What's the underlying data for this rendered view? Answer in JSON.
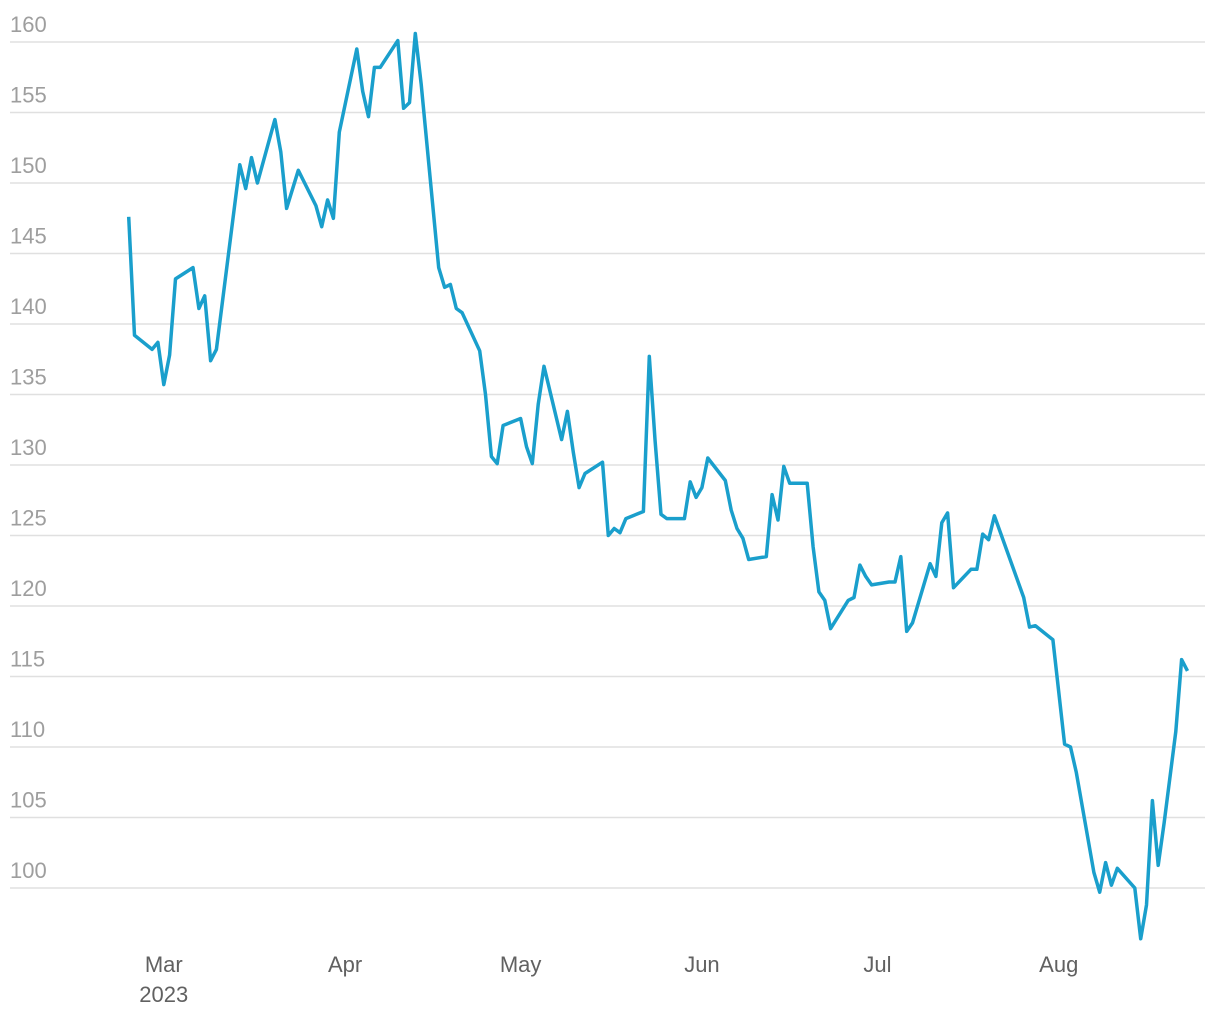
{
  "chart_data": {
    "type": "line",
    "color": "#1a9fcc",
    "grid": true,
    "x": [
      "2023-02-23",
      "2023-02-24",
      "2023-02-27",
      "2023-02-28",
      "2023-03-01",
      "2023-03-02",
      "2023-03-03",
      "2023-03-06",
      "2023-03-07",
      "2023-03-08",
      "2023-03-09",
      "2023-03-10",
      "2023-03-14",
      "2023-03-15",
      "2023-03-16",
      "2023-03-17",
      "2023-03-20",
      "2023-03-21",
      "2023-03-22",
      "2023-03-24",
      "2023-03-27",
      "2023-03-28",
      "2023-03-29",
      "2023-03-30",
      "2023-03-31",
      "2023-04-03",
      "2023-04-04",
      "2023-04-05",
      "2023-04-06",
      "2023-04-07",
      "2023-04-10",
      "2023-04-11",
      "2023-04-12",
      "2023-04-13",
      "2023-04-14",
      "2023-04-17",
      "2023-04-18",
      "2023-04-19",
      "2023-04-20",
      "2023-04-21",
      "2023-04-24",
      "2023-04-25",
      "2023-04-26",
      "2023-04-27",
      "2023-04-28",
      "2023-05-01",
      "2023-05-02",
      "2023-05-03",
      "2023-05-04",
      "2023-05-05",
      "2023-05-08",
      "2023-05-09",
      "2023-05-10",
      "2023-05-11",
      "2023-05-12",
      "2023-05-15",
      "2023-05-16",
      "2023-05-17",
      "2023-05-18",
      "2023-05-19",
      "2023-05-22",
      "2023-05-23",
      "2023-05-24",
      "2023-05-25",
      "2023-05-26",
      "2023-05-29",
      "2023-05-30",
      "2023-05-31",
      "2023-06-01",
      "2023-06-02",
      "2023-06-05",
      "2023-06-06",
      "2023-06-07",
      "2023-06-08",
      "2023-06-09",
      "2023-06-12",
      "2023-06-13",
      "2023-06-14",
      "2023-06-15",
      "2023-06-16",
      "2023-06-19",
      "2023-06-20",
      "2023-06-21",
      "2023-06-22",
      "2023-06-23",
      "2023-06-26",
      "2023-06-27",
      "2023-06-28",
      "2023-06-29",
      "2023-06-30",
      "2023-07-03",
      "2023-07-04",
      "2023-07-05",
      "2023-07-06",
      "2023-07-07",
      "2023-07-10",
      "2023-07-11",
      "2023-07-12",
      "2023-07-13",
      "2023-07-14",
      "2023-07-17",
      "2023-07-18",
      "2023-07-19",
      "2023-07-20",
      "2023-07-21",
      "2023-07-26",
      "2023-07-27",
      "2023-07-28",
      "2023-07-31",
      "2023-08-02",
      "2023-08-03",
      "2023-08-04",
      "2023-08-07",
      "2023-08-08",
      "2023-08-09",
      "2023-08-10",
      "2023-08-11",
      "2023-08-14",
      "2023-08-15",
      "2023-08-16",
      "2023-08-17",
      "2023-08-18",
      "2023-08-19",
      "2023-08-21",
      "2023-08-22",
      "2023-08-23"
    ],
    "values": [
      147.6,
      139.2,
      138.2,
      138.7,
      135.7,
      137.8,
      143.2,
      144.0,
      141.1,
      142.0,
      137.4,
      138.2,
      151.3,
      149.6,
      151.8,
      150.0,
      154.5,
      152.2,
      148.2,
      150.9,
      148.4,
      146.9,
      148.8,
      147.5,
      153.6,
      159.5,
      156.5,
      154.7,
      158.2,
      158.2,
      160.1,
      155.3,
      155.7,
      160.6,
      157.0,
      144.0,
      142.6,
      142.8,
      141.1,
      140.8,
      138.1,
      135.0,
      130.6,
      130.1,
      132.8,
      133.3,
      131.3,
      130.1,
      134.3,
      137.0,
      131.8,
      133.8,
      130.9,
      128.4,
      129.4,
      130.2,
      125.0,
      125.5,
      125.2,
      126.2,
      126.7,
      137.7,
      131.7,
      126.5,
      126.2,
      126.2,
      128.8,
      127.7,
      128.4,
      130.5,
      128.9,
      126.8,
      125.5,
      124.8,
      123.3,
      123.5,
      127.9,
      126.1,
      129.9,
      128.7,
      128.7,
      124.2,
      121.0,
      120.4,
      118.4,
      120.4,
      120.6,
      122.9,
      122.1,
      121.5,
      121.7,
      121.7,
      123.5,
      118.2,
      118.8,
      123.0,
      122.1,
      125.9,
      126.6,
      121.3,
      122.6,
      122.6,
      125.1,
      124.7,
      126.4,
      120.6,
      118.5,
      118.6,
      117.6,
      110.2,
      110.0,
      108.2,
      101.1,
      99.7,
      101.8,
      100.2,
      101.4,
      100.0,
      96.4,
      98.8,
      106.2,
      101.6,
      104.6,
      111.1,
      116.2,
      115.4
    ],
    "xlim": [
      "2023-02-01",
      "2023-08-26"
    ],
    "xticks": [
      {
        "value": "2023-03-01",
        "label": "Mar\n2023"
      },
      {
        "value": "2023-04-01",
        "label": "Apr"
      },
      {
        "value": "2023-05-01",
        "label": "May"
      },
      {
        "value": "2023-06-01",
        "label": "Jun"
      },
      {
        "value": "2023-07-01",
        "label": "Jul"
      },
      {
        "value": "2023-08-01",
        "label": "Aug"
      }
    ],
    "ylim": [
      95,
      161
    ],
    "yticks": [
      100,
      105,
      110,
      115,
      120,
      125,
      130,
      135,
      140,
      145,
      150,
      155,
      160
    ]
  }
}
